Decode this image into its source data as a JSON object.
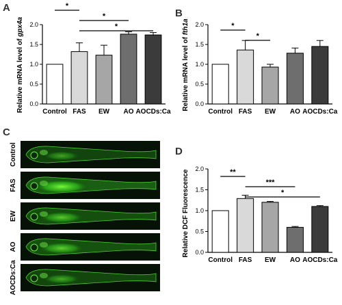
{
  "panels": {
    "A": "A",
    "B": "B",
    "C": "C",
    "D": "D"
  },
  "chart_data": [
    {
      "panel": "A",
      "type": "bar",
      "categories": [
        "Control",
        "FAS",
        "EW",
        "AO",
        "AOCDs:Ca"
      ],
      "values": [
        1.0,
        1.32,
        1.23,
        1.76,
        1.74
      ],
      "errors": [
        0.0,
        0.22,
        0.25,
        0.06,
        0.06
      ],
      "colors": [
        "#ffffff",
        "#d9d9d9",
        "#a6a6a6",
        "#6e6e6e",
        "#3b3b3b"
      ],
      "ylabel_prefix": "Relative mRNA level of ",
      "ylabel_gene": "gpx4a",
      "ylim": [
        0,
        2.0
      ],
      "yticks": [
        0.0,
        0.5,
        1.0,
        1.5,
        2.0
      ],
      "ytick_labels": [
        "0.0",
        "0.5",
        "1.0",
        "1.5",
        "2.0"
      ],
      "significance": [
        {
          "from": 0,
          "to": 1,
          "label": "*"
        },
        {
          "from": 1,
          "to": 3,
          "label": "*"
        },
        {
          "from": 1,
          "to": 4,
          "label": "*"
        }
      ]
    },
    {
      "panel": "B",
      "type": "bar",
      "categories": [
        "Control",
        "FAS",
        "EW",
        "AO",
        "AOCDs:Ca"
      ],
      "values": [
        1.0,
        1.36,
        0.93,
        1.28,
        1.45
      ],
      "errors": [
        0.0,
        0.24,
        0.07,
        0.13,
        0.15
      ],
      "colors": [
        "#ffffff",
        "#d9d9d9",
        "#a6a6a6",
        "#6e6e6e",
        "#3b3b3b"
      ],
      "ylabel_prefix": "Relative mRNA level of ",
      "ylabel_gene": "fth1a",
      "ylim": [
        0,
        2.0
      ],
      "yticks": [
        0.0,
        0.5,
        1.0,
        1.5,
        2.0
      ],
      "ytick_labels": [
        "0.0",
        "0.5",
        "1.0",
        "1.5",
        "2.0"
      ],
      "significance": [
        {
          "from": 0,
          "to": 1,
          "label": "*"
        },
        {
          "from": 1,
          "to": 2,
          "label": "*"
        }
      ]
    },
    {
      "panel": "D",
      "type": "bar",
      "categories": [
        "Control",
        "FAS",
        "EW",
        "AO",
        "AOCDs:Ca"
      ],
      "values": [
        1.0,
        1.29,
        1.2,
        0.6,
        1.1
      ],
      "errors": [
        0.0,
        0.08,
        0.02,
        0.02,
        0.02
      ],
      "colors": [
        "#ffffff",
        "#d9d9d9",
        "#a6a6a6",
        "#6e6e6e",
        "#3b3b3b"
      ],
      "ylabel": "Relative DCF Fluorescence",
      "ylim": [
        0,
        2.0
      ],
      "yticks": [
        0.0,
        0.5,
        1.0,
        1.5,
        2.0
      ],
      "ytick_labels": [
        "0.0",
        "0.5",
        "1.0",
        "1.5",
        "2.0"
      ],
      "significance": [
        {
          "from": 0,
          "to": 1,
          "label": "**"
        },
        {
          "from": 1,
          "to": 3,
          "label": "***"
        },
        {
          "from": 1,
          "to": 4,
          "label": "*"
        }
      ]
    }
  ],
  "fish_images": {
    "labels": [
      "Control",
      "FAS",
      "EW",
      "AO",
      "AOCDs:Ca"
    ],
    "glow": [
      0.25,
      0.95,
      0.55,
      0.6,
      0.3
    ]
  }
}
